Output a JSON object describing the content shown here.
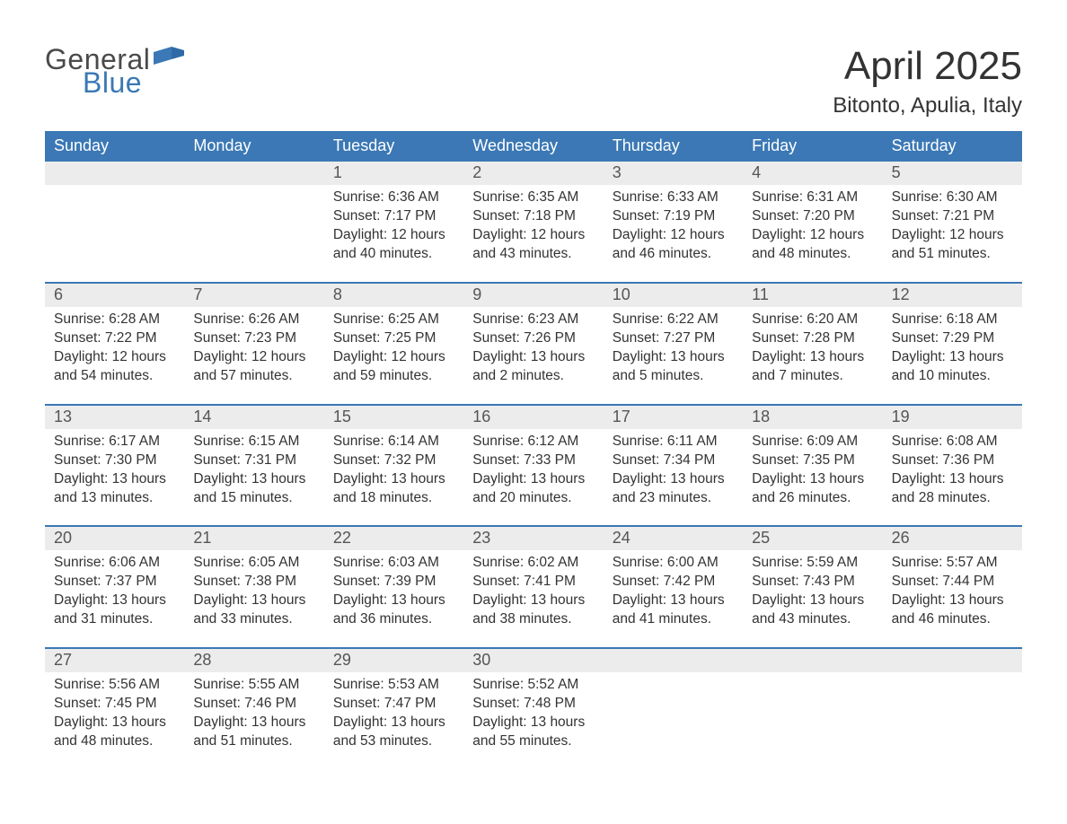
{
  "brand": {
    "logo_general": "General",
    "logo_blue": "Blue",
    "flag_color": "#3b78b5",
    "text_gray": "#4a4a4a"
  },
  "title": "April 2025",
  "subtitle": "Bitonto, Apulia, Italy",
  "colors": {
    "header_bg": "#3b78b5",
    "header_text": "#ffffff",
    "daynum_bg": "#ececec",
    "body_text": "#333333",
    "page_bg": "#ffffff",
    "week_divider": "#3b78b5"
  },
  "typography": {
    "title_fontsize": 44,
    "subtitle_fontsize": 24,
    "weekday_fontsize": 18,
    "daynum_fontsize": 18,
    "body_fontsize": 15.5
  },
  "weekdays": [
    "Sunday",
    "Monday",
    "Tuesday",
    "Wednesday",
    "Thursday",
    "Friday",
    "Saturday"
  ],
  "weeks": [
    [
      null,
      null,
      {
        "day": "1",
        "sunrise": "Sunrise: 6:36 AM",
        "sunset": "Sunset: 7:17 PM",
        "daylight": "Daylight: 12 hours and 40 minutes."
      },
      {
        "day": "2",
        "sunrise": "Sunrise: 6:35 AM",
        "sunset": "Sunset: 7:18 PM",
        "daylight": "Daylight: 12 hours and 43 minutes."
      },
      {
        "day": "3",
        "sunrise": "Sunrise: 6:33 AM",
        "sunset": "Sunset: 7:19 PM",
        "daylight": "Daylight: 12 hours and 46 minutes."
      },
      {
        "day": "4",
        "sunrise": "Sunrise: 6:31 AM",
        "sunset": "Sunset: 7:20 PM",
        "daylight": "Daylight: 12 hours and 48 minutes."
      },
      {
        "day": "5",
        "sunrise": "Sunrise: 6:30 AM",
        "sunset": "Sunset: 7:21 PM",
        "daylight": "Daylight: 12 hours and 51 minutes."
      }
    ],
    [
      {
        "day": "6",
        "sunrise": "Sunrise: 6:28 AM",
        "sunset": "Sunset: 7:22 PM",
        "daylight": "Daylight: 12 hours and 54 minutes."
      },
      {
        "day": "7",
        "sunrise": "Sunrise: 6:26 AM",
        "sunset": "Sunset: 7:23 PM",
        "daylight": "Daylight: 12 hours and 57 minutes."
      },
      {
        "day": "8",
        "sunrise": "Sunrise: 6:25 AM",
        "sunset": "Sunset: 7:25 PM",
        "daylight": "Daylight: 12 hours and 59 minutes."
      },
      {
        "day": "9",
        "sunrise": "Sunrise: 6:23 AM",
        "sunset": "Sunset: 7:26 PM",
        "daylight": "Daylight: 13 hours and 2 minutes."
      },
      {
        "day": "10",
        "sunrise": "Sunrise: 6:22 AM",
        "sunset": "Sunset: 7:27 PM",
        "daylight": "Daylight: 13 hours and 5 minutes."
      },
      {
        "day": "11",
        "sunrise": "Sunrise: 6:20 AM",
        "sunset": "Sunset: 7:28 PM",
        "daylight": "Daylight: 13 hours and 7 minutes."
      },
      {
        "day": "12",
        "sunrise": "Sunrise: 6:18 AM",
        "sunset": "Sunset: 7:29 PM",
        "daylight": "Daylight: 13 hours and 10 minutes."
      }
    ],
    [
      {
        "day": "13",
        "sunrise": "Sunrise: 6:17 AM",
        "sunset": "Sunset: 7:30 PM",
        "daylight": "Daylight: 13 hours and 13 minutes."
      },
      {
        "day": "14",
        "sunrise": "Sunrise: 6:15 AM",
        "sunset": "Sunset: 7:31 PM",
        "daylight": "Daylight: 13 hours and 15 minutes."
      },
      {
        "day": "15",
        "sunrise": "Sunrise: 6:14 AM",
        "sunset": "Sunset: 7:32 PM",
        "daylight": "Daylight: 13 hours and 18 minutes."
      },
      {
        "day": "16",
        "sunrise": "Sunrise: 6:12 AM",
        "sunset": "Sunset: 7:33 PM",
        "daylight": "Daylight: 13 hours and 20 minutes."
      },
      {
        "day": "17",
        "sunrise": "Sunrise: 6:11 AM",
        "sunset": "Sunset: 7:34 PM",
        "daylight": "Daylight: 13 hours and 23 minutes."
      },
      {
        "day": "18",
        "sunrise": "Sunrise: 6:09 AM",
        "sunset": "Sunset: 7:35 PM",
        "daylight": "Daylight: 13 hours and 26 minutes."
      },
      {
        "day": "19",
        "sunrise": "Sunrise: 6:08 AM",
        "sunset": "Sunset: 7:36 PM",
        "daylight": "Daylight: 13 hours and 28 minutes."
      }
    ],
    [
      {
        "day": "20",
        "sunrise": "Sunrise: 6:06 AM",
        "sunset": "Sunset: 7:37 PM",
        "daylight": "Daylight: 13 hours and 31 minutes."
      },
      {
        "day": "21",
        "sunrise": "Sunrise: 6:05 AM",
        "sunset": "Sunset: 7:38 PM",
        "daylight": "Daylight: 13 hours and 33 minutes."
      },
      {
        "day": "22",
        "sunrise": "Sunrise: 6:03 AM",
        "sunset": "Sunset: 7:39 PM",
        "daylight": "Daylight: 13 hours and 36 minutes."
      },
      {
        "day": "23",
        "sunrise": "Sunrise: 6:02 AM",
        "sunset": "Sunset: 7:41 PM",
        "daylight": "Daylight: 13 hours and 38 minutes."
      },
      {
        "day": "24",
        "sunrise": "Sunrise: 6:00 AM",
        "sunset": "Sunset: 7:42 PM",
        "daylight": "Daylight: 13 hours and 41 minutes."
      },
      {
        "day": "25",
        "sunrise": "Sunrise: 5:59 AM",
        "sunset": "Sunset: 7:43 PM",
        "daylight": "Daylight: 13 hours and 43 minutes."
      },
      {
        "day": "26",
        "sunrise": "Sunrise: 5:57 AM",
        "sunset": "Sunset: 7:44 PM",
        "daylight": "Daylight: 13 hours and 46 minutes."
      }
    ],
    [
      {
        "day": "27",
        "sunrise": "Sunrise: 5:56 AM",
        "sunset": "Sunset: 7:45 PM",
        "daylight": "Daylight: 13 hours and 48 minutes."
      },
      {
        "day": "28",
        "sunrise": "Sunrise: 5:55 AM",
        "sunset": "Sunset: 7:46 PM",
        "daylight": "Daylight: 13 hours and 51 minutes."
      },
      {
        "day": "29",
        "sunrise": "Sunrise: 5:53 AM",
        "sunset": "Sunset: 7:47 PM",
        "daylight": "Daylight: 13 hours and 53 minutes."
      },
      {
        "day": "30",
        "sunrise": "Sunrise: 5:52 AM",
        "sunset": "Sunset: 7:48 PM",
        "daylight": "Daylight: 13 hours and 55 minutes."
      },
      null,
      null,
      null
    ]
  ]
}
